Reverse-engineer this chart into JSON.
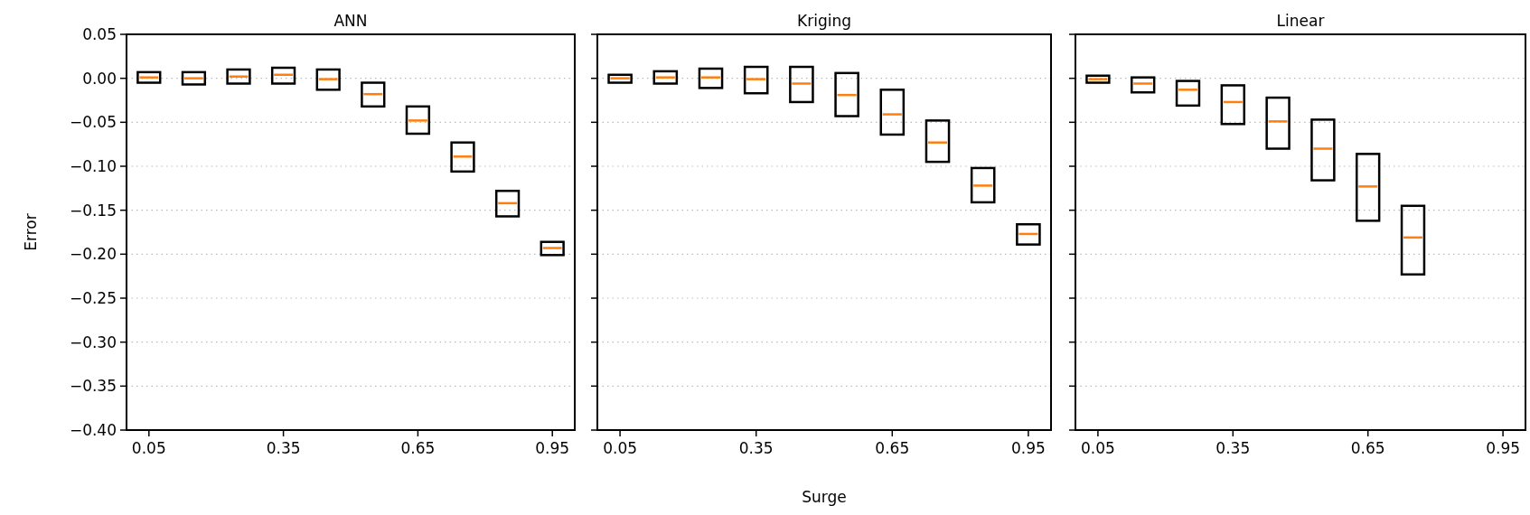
{
  "chart_data": [
    {
      "type": "box",
      "title": "ANN",
      "ylabel": "Error",
      "categories": [
        "0.05",
        null,
        null,
        "0.35",
        null,
        null,
        "0.65",
        null,
        null,
        "0.95"
      ],
      "ylim": [
        -0.4,
        0.05
      ],
      "yticks": [
        {
          "value": 0.05,
          "label": "0.05"
        },
        {
          "value": 0,
          "label": "0.00"
        },
        {
          "value": -0.05,
          "label": "−0.05"
        },
        {
          "value": -0.1,
          "label": "−0.10"
        },
        {
          "value": -0.15,
          "label": "−0.15"
        },
        {
          "value": -0.2,
          "label": "−0.20"
        },
        {
          "value": -0.25,
          "label": "−0.25"
        },
        {
          "value": -0.3,
          "label": "−0.30"
        },
        {
          "value": -0.35,
          "label": "−0.35"
        },
        {
          "value": -0.4,
          "label": "−0.40"
        }
      ],
      "grid": "y",
      "boxes": [
        {
          "low": -0.005,
          "q1": -0.005,
          "median": 0.001,
          "q3": 0.007,
          "high": 0.007
        },
        {
          "low": -0.007,
          "q1": -0.007,
          "median": 0.0,
          "q3": 0.007,
          "high": 0.007
        },
        {
          "low": -0.006,
          "q1": -0.006,
          "median": 0.002,
          "q3": 0.01,
          "high": 0.01
        },
        {
          "low": -0.006,
          "q1": -0.006,
          "median": 0.004,
          "q3": 0.012,
          "high": 0.012
        },
        {
          "low": -0.013,
          "q1": -0.013,
          "median": -0.001,
          "q3": 0.01,
          "high": 0.01
        },
        {
          "low": -0.032,
          "q1": -0.032,
          "median": -0.018,
          "q3": -0.005,
          "high": -0.005
        },
        {
          "low": -0.063,
          "q1": -0.063,
          "median": -0.048,
          "q3": -0.032,
          "high": -0.032
        },
        {
          "low": -0.106,
          "q1": -0.106,
          "median": -0.089,
          "q3": -0.073,
          "high": -0.073
        },
        {
          "low": -0.157,
          "q1": -0.157,
          "median": -0.142,
          "q3": -0.128,
          "high": -0.128
        },
        {
          "low": -0.201,
          "q1": -0.201,
          "median": -0.193,
          "q3": -0.186,
          "high": -0.186
        }
      ]
    },
    {
      "type": "box",
      "title": "Kriging",
      "xlabel": "Surge",
      "tick_labels": "x",
      "categories": [
        "0.05",
        null,
        null,
        "0.35",
        null,
        null,
        "0.65",
        null,
        null,
        "0.95"
      ],
      "ylim": [
        -0.4,
        0.05
      ],
      "yticks": [
        0.05,
        0,
        -0.05,
        -0.1,
        -0.15,
        -0.2,
        -0.25,
        -0.3,
        -0.35,
        -0.4
      ],
      "grid": "y",
      "boxes": [
        {
          "low": -0.005,
          "q1": -0.005,
          "median": 0.0,
          "q3": 0.004,
          "high": 0.004
        },
        {
          "low": -0.006,
          "q1": -0.006,
          "median": 0.001,
          "q3": 0.008,
          "high": 0.008
        },
        {
          "low": -0.011,
          "q1": -0.011,
          "median": 0.001,
          "q3": 0.011,
          "high": 0.011
        },
        {
          "low": -0.017,
          "q1": -0.017,
          "median": -0.001,
          "q3": 0.013,
          "high": 0.013
        },
        {
          "low": -0.027,
          "q1": -0.027,
          "median": -0.006,
          "q3": 0.013,
          "high": 0.013
        },
        {
          "low": -0.043,
          "q1": -0.043,
          "median": -0.019,
          "q3": 0.006,
          "high": 0.006
        },
        {
          "low": -0.064,
          "q1": -0.064,
          "median": -0.041,
          "q3": -0.013,
          "high": -0.013
        },
        {
          "low": -0.095,
          "q1": -0.095,
          "median": -0.073,
          "q3": -0.048,
          "high": -0.048
        },
        {
          "low": -0.141,
          "q1": -0.141,
          "median": -0.122,
          "q3": -0.102,
          "high": -0.102
        },
        {
          "low": -0.189,
          "q1": -0.189,
          "median": -0.177,
          "q3": -0.166,
          "high": -0.166
        }
      ]
    },
    {
      "type": "box",
      "title": "Linear",
      "tick_labels": "x",
      "categories": [
        "0.05",
        null,
        null,
        "0.35",
        null,
        null,
        "0.65",
        null,
        null,
        "0.95"
      ],
      "ylim": [
        -0.4,
        0.05
      ],
      "yticks": [
        0.05,
        0,
        -0.05,
        -0.1,
        -0.15,
        -0.2,
        -0.25,
        -0.3,
        -0.35,
        -0.4
      ],
      "grid": "y",
      "boxes": [
        {
          "low": -0.005,
          "q1": -0.005,
          "median": -0.001,
          "q3": 0.003,
          "high": 0.003
        },
        {
          "low": -0.016,
          "q1": -0.016,
          "median": -0.006,
          "q3": 0.001,
          "high": 0.001
        },
        {
          "low": -0.031,
          "q1": -0.031,
          "median": -0.013,
          "q3": -0.003,
          "high": -0.003
        },
        {
          "low": -0.052,
          "q1": -0.052,
          "median": -0.027,
          "q3": -0.008,
          "high": -0.008
        },
        {
          "low": -0.08,
          "q1": -0.08,
          "median": -0.049,
          "q3": -0.022,
          "high": -0.022
        },
        {
          "low": -0.116,
          "q1": -0.116,
          "median": -0.08,
          "q3": -0.047,
          "high": -0.047
        },
        {
          "low": -0.162,
          "q1": -0.162,
          "median": -0.123,
          "q3": -0.086,
          "high": -0.086
        },
        {
          "low": -0.223,
          "q1": -0.223,
          "median": -0.181,
          "q3": -0.145,
          "high": -0.145
        },
        null,
        null
      ]
    }
  ]
}
